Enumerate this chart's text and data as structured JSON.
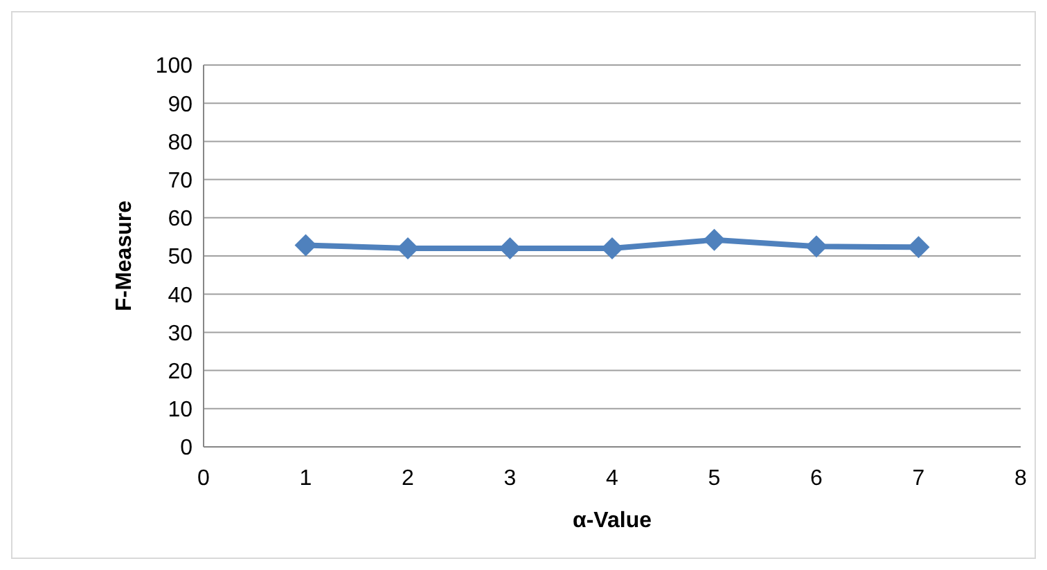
{
  "chart_data": {
    "type": "line",
    "xlabel": "α-Value",
    "ylabel": "F-Measure",
    "x": [
      1,
      2,
      3,
      4,
      5,
      6,
      7
    ],
    "series": [
      {
        "color": "#4f81bd",
        "values": [
          52.8,
          52,
          52,
          52,
          54.2,
          52.5,
          52.3
        ]
      }
    ],
    "xlim": [
      0,
      8
    ],
    "xticks": [
      0,
      1,
      2,
      3,
      4,
      5,
      6,
      7,
      8
    ],
    "ylim": [
      0,
      100
    ],
    "yticks": [
      0,
      10,
      20,
      30,
      40,
      50,
      60,
      70,
      80,
      90,
      100
    ],
    "grid": "y",
    "legend": false,
    "marker": "diamond",
    "line_style": "solid"
  }
}
